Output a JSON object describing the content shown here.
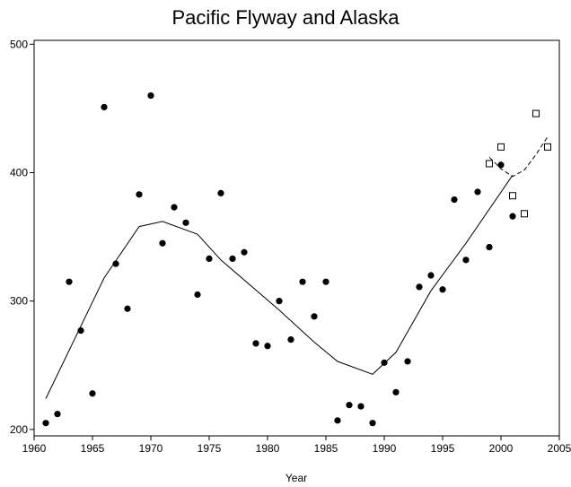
{
  "chart_data": {
    "type": "scatter",
    "title": "Pacific Flyway and Alaska",
    "xlabel": "Year",
    "ylabel": "",
    "xlim": [
      1960,
      2005
    ],
    "ylim": [
      195,
      503
    ],
    "x_ticks": [
      1960,
      1965,
      1970,
      1975,
      1980,
      1985,
      1990,
      1995,
      2000,
      2005
    ],
    "y_ticks": [
      200,
      300,
      400,
      500
    ],
    "grid": false,
    "legend": "none",
    "series": [
      {
        "marker": "filled-circle",
        "points": [
          [
            1961,
            205
          ],
          [
            1962,
            212
          ],
          [
            1963,
            315
          ],
          [
            1964,
            277
          ],
          [
            1965,
            228
          ],
          [
            1966,
            451
          ],
          [
            1967,
            329
          ],
          [
            1968,
            294
          ],
          [
            1969,
            383
          ],
          [
            1970,
            460
          ],
          [
            1971,
            345
          ],
          [
            1972,
            373
          ],
          [
            1973,
            361
          ],
          [
            1974,
            305
          ],
          [
            1975,
            333
          ],
          [
            1976,
            384
          ],
          [
            1977,
            333
          ],
          [
            1978,
            338
          ],
          [
            1979,
            267
          ],
          [
            1980,
            265
          ],
          [
            1981,
            300
          ],
          [
            1982,
            270
          ],
          [
            1983,
            315
          ],
          [
            1984,
            288
          ],
          [
            1985,
            315
          ],
          [
            1986,
            207
          ],
          [
            1987,
            219
          ],
          [
            1988,
            218
          ],
          [
            1989,
            205
          ],
          [
            1990,
            252
          ],
          [
            1991,
            229
          ],
          [
            1992,
            253
          ],
          [
            1993,
            311
          ],
          [
            1994,
            320
          ],
          [
            1995,
            309
          ],
          [
            1996,
            379
          ],
          [
            1997,
            332
          ],
          [
            1998,
            385
          ],
          [
            1999,
            342
          ],
          [
            2000,
            406
          ],
          [
            2001,
            366
          ]
        ]
      },
      {
        "marker": "open-square",
        "points": [
          [
            1999,
            407
          ],
          [
            2000,
            420
          ],
          [
            2001,
            382
          ],
          [
            2002,
            368
          ],
          [
            2003,
            446
          ],
          [
            2004,
            420
          ]
        ]
      },
      {
        "line_style": "solid",
        "points": [
          [
            1961,
            224
          ],
          [
            1966,
            318
          ],
          [
            1969,
            358
          ],
          [
            1971,
            362
          ],
          [
            1974,
            352
          ],
          [
            1976,
            332
          ],
          [
            1981,
            293
          ],
          [
            1984,
            268
          ],
          [
            1986,
            253
          ],
          [
            1989,
            243
          ],
          [
            1991,
            260
          ],
          [
            1994,
            308
          ],
          [
            1997,
            345
          ],
          [
            2001,
            398
          ]
        ]
      },
      {
        "line_style": "dashed",
        "points": [
          [
            1999,
            412
          ],
          [
            2000,
            403
          ],
          [
            2001,
            397
          ],
          [
            2002,
            402
          ],
          [
            2003,
            414
          ],
          [
            2004,
            428
          ]
        ]
      }
    ]
  }
}
